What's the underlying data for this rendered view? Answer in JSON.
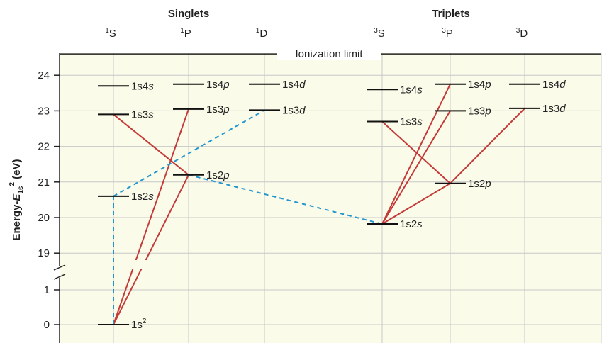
{
  "headers": {
    "singlets": "Singlets",
    "triplets": "Triplets"
  },
  "ionization_label": "Ionization limit",
  "columns": [
    {
      "id": "1S",
      "sup": "1",
      "letter": "S"
    },
    {
      "id": "1P",
      "sup": "1",
      "letter": "P"
    },
    {
      "id": "1D",
      "sup": "1",
      "letter": "D"
    },
    {
      "id": "3S",
      "sup": "3",
      "letter": "S"
    },
    {
      "id": "3P",
      "sup": "3",
      "letter": "P"
    },
    {
      "id": "3D",
      "sup": "3",
      "letter": "D"
    }
  ],
  "y_axis": {
    "label": {
      "main": "Energy-",
      "var": "E",
      "sub": "1s",
      "sup": "2",
      "unit": " (eV)"
    },
    "upper_ticks": [
      19,
      20,
      21,
      22,
      23,
      24
    ],
    "lower_ticks": [
      0,
      1
    ],
    "ionization_energy": 24.6
  },
  "levels": [
    {
      "col": "1S",
      "energy": 0,
      "label": "1s",
      "label_sup": "2",
      "italic_end": false
    },
    {
      "col": "1S",
      "energy": 20.6,
      "label": "1s2s",
      "italic_end": true
    },
    {
      "col": "1S",
      "energy": 22.9,
      "label": "1s3s",
      "italic_end": true
    },
    {
      "col": "1S",
      "energy": 23.7,
      "label": "1s4s",
      "italic_end": true
    },
    {
      "col": "1P",
      "energy": 21.2,
      "label": "1s2p",
      "italic_end": true
    },
    {
      "col": "1P",
      "energy": 23.05,
      "label": "1s3p",
      "italic_end": true
    },
    {
      "col": "1P",
      "energy": 23.75,
      "label": "1s4p",
      "italic_end": true
    },
    {
      "col": "1D",
      "energy": 23.02,
      "label": "1s3d",
      "italic_end": true
    },
    {
      "col": "1D",
      "energy": 23.75,
      "label": "1s4d",
      "italic_end": true
    },
    {
      "col": "3S",
      "energy": 19.82,
      "label": "1s2s",
      "italic_end": true
    },
    {
      "col": "3S",
      "energy": 22.7,
      "label": "1s3s",
      "italic_end": true
    },
    {
      "col": "3S",
      "energy": 23.6,
      "label": "1s4s",
      "italic_end": true
    },
    {
      "col": "3P",
      "energy": 20.96,
      "label": "1s2p",
      "italic_end": true
    },
    {
      "col": "3P",
      "energy": 23.0,
      "label": "1s3p",
      "italic_end": true
    },
    {
      "col": "3P",
      "energy": 23.75,
      "label": "1s4p",
      "italic_end": true
    },
    {
      "col": "3D",
      "energy": 23.07,
      "label": "1s3d",
      "italic_end": true
    },
    {
      "col": "3D",
      "energy": 23.75,
      "label": "1s4d",
      "italic_end": true
    }
  ],
  "transitions": [
    {
      "from": [
        "1S",
        0
      ],
      "to": [
        "1P",
        21.2
      ],
      "style": "allowed"
    },
    {
      "from": [
        "1S",
        0
      ],
      "to": [
        "1P",
        23.05
      ],
      "style": "allowed"
    },
    {
      "from": [
        "1S",
        22.9
      ],
      "to": [
        "1P",
        21.2
      ],
      "style": "allowed"
    },
    {
      "from": [
        "3S",
        19.82
      ],
      "to": [
        "3P",
        20.96
      ],
      "style": "allowed"
    },
    {
      "from": [
        "3S",
        19.82
      ],
      "to": [
        "3P",
        23.0
      ],
      "style": "allowed"
    },
    {
      "from": [
        "3S",
        19.82
      ],
      "to": [
        "3P",
        23.75
      ],
      "style": "allowed"
    },
    {
      "from": [
        "3S",
        22.7
      ],
      "to": [
        "3P",
        20.96
      ],
      "style": "allowed"
    },
    {
      "from": [
        "3P",
        20.96
      ],
      "to": [
        "3D",
        23.07
      ],
      "style": "allowed"
    },
    {
      "from": [
        "1S",
        0
      ],
      "to": [
        "1S",
        20.6
      ],
      "style": "forbidden"
    },
    {
      "from": [
        "1S",
        20.6
      ],
      "to": [
        "1D",
        23.02
      ],
      "style": "forbidden"
    },
    {
      "from": [
        "1P",
        21.2
      ],
      "to": [
        "3S",
        19.82
      ],
      "style": "forbidden"
    }
  ],
  "colors": {
    "background": "#fbfbe9",
    "grid": "#c8c8c8",
    "axis": "#222222",
    "level": "#111111",
    "allowed": "#c43a38",
    "forbidden": "#2196cf"
  }
}
